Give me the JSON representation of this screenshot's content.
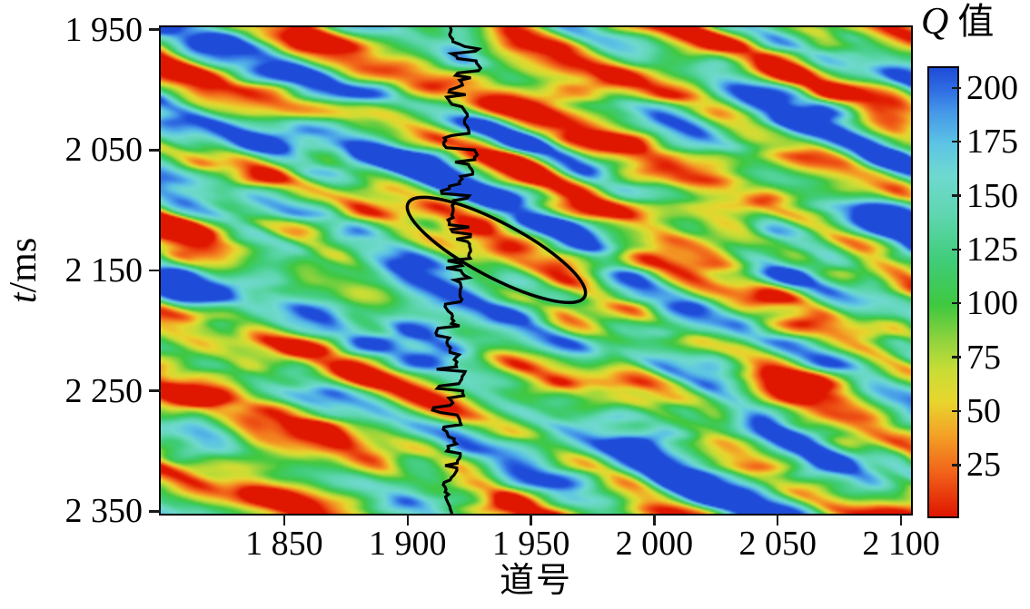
{
  "figure_background": "#ffffff",
  "chart_data": {
    "type": "heatmap",
    "title": "",
    "xlabel": "道号",
    "ylabel": "t/ms",
    "ylabel_symbol": "t",
    "ylabel_suffix": "/ms",
    "x_range": [
      1800,
      2104
    ],
    "y_range": [
      1948,
      2352
    ],
    "y_axis_direction": "down",
    "x_ticks": [
      {
        "value": 1850,
        "label": "1 850"
      },
      {
        "value": 1900,
        "label": "1 900"
      },
      {
        "value": 1950,
        "label": "1 950"
      },
      {
        "value": 2000,
        "label": "2 000"
      },
      {
        "value": 2050,
        "label": "2 050"
      },
      {
        "value": 2100,
        "label": "2 100"
      }
    ],
    "y_ticks": [
      {
        "value": 1950,
        "label": "1 950"
      },
      {
        "value": 2050,
        "label": "2 050"
      },
      {
        "value": 2150,
        "label": "2 150"
      },
      {
        "value": 2250,
        "label": "2 250"
      },
      {
        "value": 2350,
        "label": "2 350"
      }
    ],
    "colorbar": {
      "title": "Q 值",
      "title_symbol": "Q",
      "title_suffix": "值",
      "value_min": 2,
      "value_max": 210,
      "ticks": [
        {
          "value": 200,
          "label": "200"
        },
        {
          "value": 175,
          "label": "175"
        },
        {
          "value": 150,
          "label": "150"
        },
        {
          "value": 125,
          "label": "125"
        },
        {
          "value": 100,
          "label": "100"
        },
        {
          "value": 75,
          "label": "75"
        },
        {
          "value": 50,
          "label": "50"
        },
        {
          "value": 25,
          "label": "25"
        }
      ]
    },
    "colormap_stops": [
      {
        "q": 2,
        "color": "#df1600"
      },
      {
        "q": 22,
        "color": "#f1611a"
      },
      {
        "q": 40,
        "color": "#f3a226"
      },
      {
        "q": 55,
        "color": "#e8d52e"
      },
      {
        "q": 70,
        "color": "#c8dd35"
      },
      {
        "q": 85,
        "color": "#8ad23f"
      },
      {
        "q": 100,
        "color": "#3fc83f"
      },
      {
        "q": 120,
        "color": "#3fcc77"
      },
      {
        "q": 142,
        "color": "#5fd6b0"
      },
      {
        "q": 160,
        "color": "#6fd9cf"
      },
      {
        "q": 175,
        "color": "#5cc3e4"
      },
      {
        "q": 190,
        "color": "#4496e8"
      },
      {
        "q": 200,
        "color": "#2f6ce2"
      },
      {
        "q": 210,
        "color": "#1e4cd8"
      }
    ],
    "field_description": "Seismic interval Q-value section: alternating high-Q (blue) and low-Q (red/orange) stripes dipping down toward larger trace numbers, with green/cyan intermediate background; low-Q anomaly highlighted by ellipse near the well.",
    "field_params": {
      "seed_phase": 11,
      "seed_blob": 23,
      "seed_fine": 37,
      "dip_ms_per_trace": 0.86,
      "band_period_ms": 66,
      "phase_wobble": 4.5,
      "blob_scale_along_traces": 52,
      "blob_scale_across_ms": 19,
      "fine_scale_traces": 21,
      "fine_scale_ms": 14,
      "weight_band": 1.0,
      "weight_blob": 1.5,
      "weight_fine": 0.75,
      "base_q": 112,
      "gain_q": 72
    },
    "well_log_curve": {
      "color": "#000000",
      "line_width": 3.2,
      "center_trace_top": 1923,
      "center_trace_bottom": 1914.5,
      "max_wiggle_traces": 7.5,
      "step_ms": 2,
      "jump_probability": 0.42,
      "jump_span_traces": 13,
      "jitter_traces": 1.8,
      "seed": 7
    },
    "ellipse_annotation": {
      "center_trace": 1936,
      "center_t_ms": 2133,
      "rx_traces": 40.5,
      "ry_ms": 22.5,
      "rotation_deg": 28,
      "color": "#000000",
      "line_width": 3.5
    }
  }
}
